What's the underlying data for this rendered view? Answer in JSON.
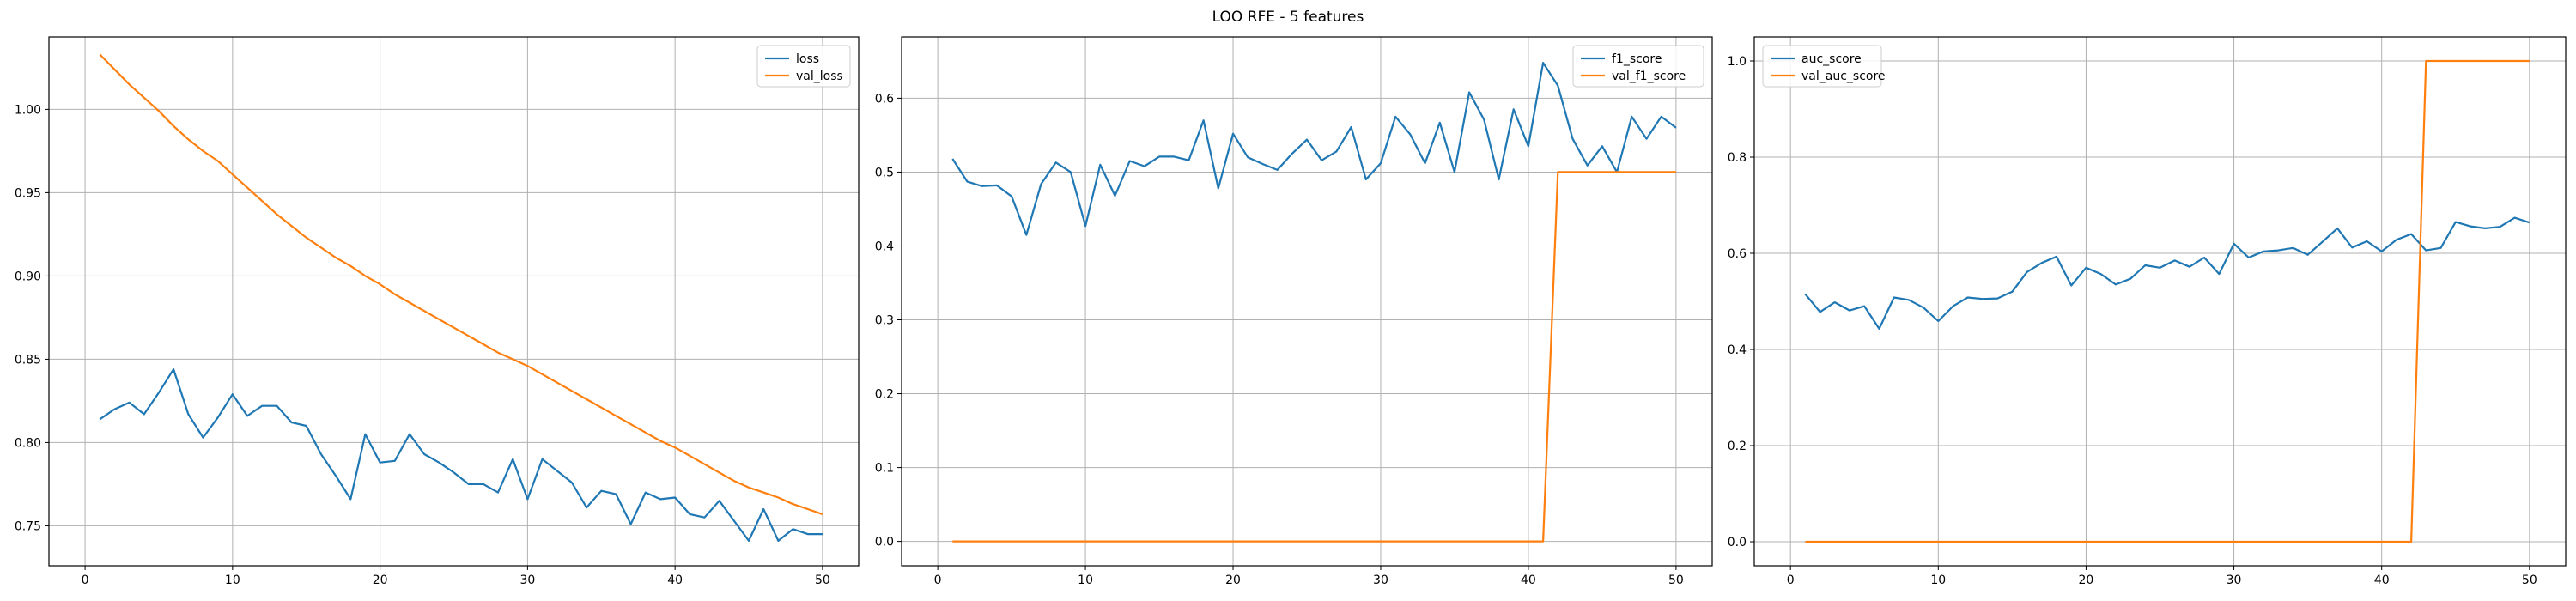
{
  "figure": {
    "title": "LOO RFE - 5 features"
  },
  "chart_data": [
    {
      "type": "line",
      "title": "",
      "xlabel": "",
      "ylabel": "",
      "xlim": [
        -2.45,
        52.45
      ],
      "ylim": [
        0.726,
        1.0435
      ],
      "xticks": [
        0,
        10,
        20,
        30,
        40,
        50
      ],
      "yticks": [
        0.75,
        0.8,
        0.85,
        0.9,
        0.95,
        1.0
      ],
      "ytick_format": 2,
      "grid": true,
      "legend_position": "top-right",
      "series": [
        {
          "name": "loss",
          "color": "#1f77b4",
          "x": [
            1,
            2,
            3,
            4,
            5,
            6,
            7,
            8,
            9,
            10,
            11,
            12,
            13,
            14,
            15,
            16,
            17,
            18,
            19,
            20,
            21,
            22,
            23,
            24,
            25,
            26,
            27,
            28,
            29,
            30,
            31,
            32,
            33,
            34,
            35,
            36,
            37,
            38,
            39,
            40,
            41,
            42,
            43,
            44,
            45,
            46,
            47,
            48,
            49,
            50
          ],
          "values": [
            0.814,
            0.82,
            0.824,
            0.817,
            0.83,
            0.844,
            0.817,
            0.803,
            0.815,
            0.829,
            0.816,
            0.822,
            0.822,
            0.812,
            0.81,
            0.793,
            0.78,
            0.766,
            0.805,
            0.788,
            0.789,
            0.805,
            0.793,
            0.788,
            0.782,
            0.775,
            0.775,
            0.77,
            0.79,
            0.766,
            0.79,
            0.783,
            0.776,
            0.761,
            0.771,
            0.769,
            0.751,
            0.77,
            0.766,
            0.767,
            0.757,
            0.755,
            0.765,
            0.753,
            0.741,
            0.76,
            0.741,
            0.748,
            0.745,
            0.745
          ]
        },
        {
          "name": "val_loss",
          "color": "#ff7f0e",
          "x": [
            1,
            2,
            3,
            4,
            5,
            6,
            7,
            8,
            9,
            10,
            11,
            12,
            13,
            14,
            15,
            16,
            17,
            18,
            19,
            20,
            21,
            22,
            23,
            24,
            25,
            26,
            27,
            28,
            29,
            30,
            31,
            32,
            33,
            34,
            35,
            36,
            37,
            38,
            39,
            40,
            41,
            42,
            43,
            44,
            45,
            46,
            47,
            48,
            49,
            50
          ],
          "values": [
            1.033,
            1.024,
            1.015,
            1.007,
            0.999,
            0.99,
            0.982,
            0.975,
            0.969,
            0.961,
            0.953,
            0.945,
            0.937,
            0.93,
            0.923,
            0.917,
            0.911,
            0.906,
            0.9,
            0.895,
            0.889,
            0.884,
            0.879,
            0.874,
            0.869,
            0.864,
            0.859,
            0.854,
            0.85,
            0.846,
            0.841,
            0.836,
            0.831,
            0.826,
            0.821,
            0.816,
            0.811,
            0.806,
            0.801,
            0.797,
            0.792,
            0.787,
            0.782,
            0.777,
            0.773,
            0.77,
            0.767,
            0.763,
            0.76,
            0.757
          ]
        }
      ]
    },
    {
      "type": "line",
      "title": "",
      "xlabel": "",
      "ylabel": "",
      "xlim": [
        -2.45,
        52.45
      ],
      "ylim": [
        -0.033,
        0.683
      ],
      "xticks": [
        0,
        10,
        20,
        30,
        40,
        50
      ],
      "yticks": [
        0.0,
        0.1,
        0.2,
        0.3,
        0.4,
        0.5,
        0.6
      ],
      "ytick_format": 1,
      "grid": true,
      "legend_position": "top-right",
      "series": [
        {
          "name": "f1_score",
          "color": "#1f77b4",
          "x": [
            1,
            2,
            3,
            4,
            5,
            6,
            7,
            8,
            9,
            10,
            11,
            12,
            13,
            14,
            15,
            16,
            17,
            18,
            19,
            20,
            21,
            22,
            23,
            24,
            25,
            26,
            27,
            28,
            29,
            30,
            31,
            32,
            33,
            34,
            35,
            36,
            37,
            38,
            39,
            40,
            41,
            42,
            43,
            44,
            45,
            46,
            47,
            48,
            49,
            50
          ],
          "values": [
            0.518,
            0.487,
            0.481,
            0.482,
            0.467,
            0.415,
            0.484,
            0.513,
            0.5,
            0.427,
            0.51,
            0.468,
            0.515,
            0.508,
            0.521,
            0.521,
            0.516,
            0.57,
            0.478,
            0.552,
            0.52,
            0.511,
            0.503,
            0.525,
            0.544,
            0.516,
            0.528,
            0.561,
            0.49,
            0.512,
            0.575,
            0.551,
            0.512,
            0.567,
            0.5,
            0.608,
            0.571,
            0.49,
            0.585,
            0.535,
            0.648,
            0.617,
            0.545,
            0.509,
            0.535,
            0.5,
            0.575,
            0.545,
            0.575,
            0.56
          ]
        },
        {
          "name": "val_f1_score",
          "color": "#ff7f0e",
          "x": [
            1,
            2,
            3,
            4,
            5,
            6,
            7,
            8,
            9,
            10,
            11,
            12,
            13,
            14,
            15,
            16,
            17,
            18,
            19,
            20,
            21,
            22,
            23,
            24,
            25,
            26,
            27,
            28,
            29,
            30,
            31,
            32,
            33,
            34,
            35,
            36,
            37,
            38,
            39,
            40,
            41,
            42,
            43,
            44,
            45,
            46,
            47,
            48,
            49,
            50
          ],
          "values": [
            0,
            0,
            0,
            0,
            0,
            0,
            0,
            0,
            0,
            0,
            0,
            0,
            0,
            0,
            0,
            0,
            0,
            0,
            0,
            0,
            0,
            0,
            0,
            0,
            0,
            0,
            0,
            0,
            0,
            0,
            0,
            0,
            0,
            0,
            0,
            0,
            0,
            0,
            0,
            0,
            0,
            0.5,
            0.5,
            0.5,
            0.5,
            0.5,
            0.5,
            0.5,
            0.5,
            0.5
          ]
        }
      ]
    },
    {
      "type": "line",
      "title": "",
      "xlabel": "",
      "ylabel": "",
      "xlim": [
        -2.45,
        52.45
      ],
      "ylim": [
        -0.05,
        1.05
      ],
      "xticks": [
        0,
        10,
        20,
        30,
        40,
        50
      ],
      "yticks": [
        0.0,
        0.2,
        0.4,
        0.6,
        0.8,
        1.0
      ],
      "ytick_format": 1,
      "grid": true,
      "legend_position": "top-left",
      "series": [
        {
          "name": "auc_score",
          "color": "#1f77b4",
          "x": [
            1,
            2,
            3,
            4,
            5,
            6,
            7,
            8,
            9,
            10,
            11,
            12,
            13,
            14,
            15,
            16,
            17,
            18,
            19,
            20,
            21,
            22,
            23,
            24,
            25,
            26,
            27,
            28,
            29,
            30,
            31,
            32,
            33,
            34,
            35,
            36,
            37,
            38,
            39,
            40,
            41,
            42,
            43,
            44,
            45,
            46,
            47,
            48,
            49,
            50
          ],
          "values": [
            0.515,
            0.478,
            0.498,
            0.481,
            0.49,
            0.443,
            0.508,
            0.503,
            0.487,
            0.459,
            0.49,
            0.508,
            0.505,
            0.506,
            0.52,
            0.561,
            0.58,
            0.593,
            0.533,
            0.57,
            0.557,
            0.535,
            0.547,
            0.575,
            0.57,
            0.585,
            0.572,
            0.591,
            0.557,
            0.62,
            0.591,
            0.604,
            0.606,
            0.611,
            0.597,
            0.624,
            0.652,
            0.612,
            0.625,
            0.604,
            0.628,
            0.64,
            0.606,
            0.611,
            0.665,
            0.656,
            0.652,
            0.655,
            0.674,
            0.664
          ]
        },
        {
          "name": "val_auc_score",
          "color": "#ff7f0e",
          "x": [
            1,
            2,
            3,
            4,
            5,
            6,
            7,
            8,
            9,
            10,
            11,
            12,
            13,
            14,
            15,
            16,
            17,
            18,
            19,
            20,
            21,
            22,
            23,
            24,
            25,
            26,
            27,
            28,
            29,
            30,
            31,
            32,
            33,
            34,
            35,
            36,
            37,
            38,
            39,
            40,
            41,
            42,
            43,
            44,
            45,
            46,
            47,
            48,
            49,
            50
          ],
          "values": [
            0,
            0,
            0,
            0,
            0,
            0,
            0,
            0,
            0,
            0,
            0,
            0,
            0,
            0,
            0,
            0,
            0,
            0,
            0,
            0,
            0,
            0,
            0,
            0,
            0,
            0,
            0,
            0,
            0,
            0,
            0,
            0.0,
            0,
            0,
            0,
            0,
            0,
            0,
            0,
            0,
            0,
            0,
            1,
            1,
            1,
            1,
            1,
            1,
            1,
            1
          ]
        }
      ]
    }
  ]
}
